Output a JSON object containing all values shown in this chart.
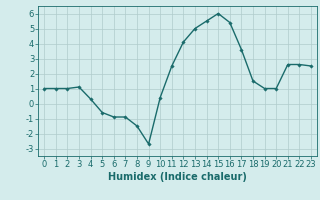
{
  "x": [
    0,
    1,
    2,
    3,
    4,
    5,
    6,
    7,
    8,
    9,
    10,
    11,
    12,
    13,
    14,
    15,
    16,
    17,
    18,
    19,
    20,
    21,
    22,
    23
  ],
  "y": [
    1,
    1,
    1,
    1.1,
    0.3,
    -0.6,
    -0.9,
    -0.9,
    -1.5,
    -2.7,
    0.4,
    2.5,
    4.1,
    5.0,
    5.5,
    6.0,
    5.4,
    3.6,
    1.5,
    1.0,
    1.0,
    2.6,
    2.6,
    2.5
  ],
  "line_color": "#1a6b6b",
  "marker": "D",
  "markersize": 1.8,
  "linewidth": 1.0,
  "xlabel": "Humidex (Indice chaleur)",
  "xlabel_fontsize": 7,
  "xlim": [
    -0.5,
    23.5
  ],
  "ylim": [
    -3.5,
    6.5
  ],
  "yticks": [
    -3,
    -2,
    -1,
    0,
    1,
    2,
    3,
    4,
    5,
    6
  ],
  "xticks": [
    0,
    1,
    2,
    3,
    4,
    5,
    6,
    7,
    8,
    9,
    10,
    11,
    12,
    13,
    14,
    15,
    16,
    17,
    18,
    19,
    20,
    21,
    22,
    23
  ],
  "bg_color": "#d4ecec",
  "grid_color": "#b0cccc",
  "tick_fontsize": 6.0
}
